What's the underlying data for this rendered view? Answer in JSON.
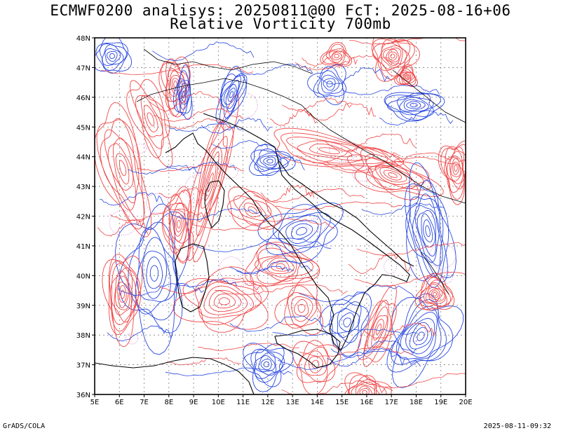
{
  "title_line1": "ECMWF0200 analisys: 20250811@00 FcT: 2025-08-16+06",
  "title_line2": "Relative Vorticity 700mb",
  "footer_left": "GrADS/COLA",
  "footer_right": "2025-08-11-09:32",
  "map": {
    "lon_range": [
      5,
      20
    ],
    "lat_range": [
      36,
      48
    ],
    "lon_labels": [
      "5E",
      "6E",
      "7E",
      "8E",
      "9E",
      "10E",
      "11E",
      "12E",
      "13E",
      "14E",
      "15E",
      "16E",
      "17E",
      "18E",
      "19E",
      "20E"
    ],
    "lat_labels": [
      "36N",
      "37N",
      "38N",
      "39N",
      "40N",
      "41N",
      "42N",
      "43N",
      "44N",
      "45N",
      "46N",
      "47N",
      "48N"
    ],
    "colors": {
      "positive": "#f04848",
      "negative": "#2848e0",
      "zero": "#c060c0",
      "coast": "#000000",
      "grid": "#808080"
    }
  }
}
